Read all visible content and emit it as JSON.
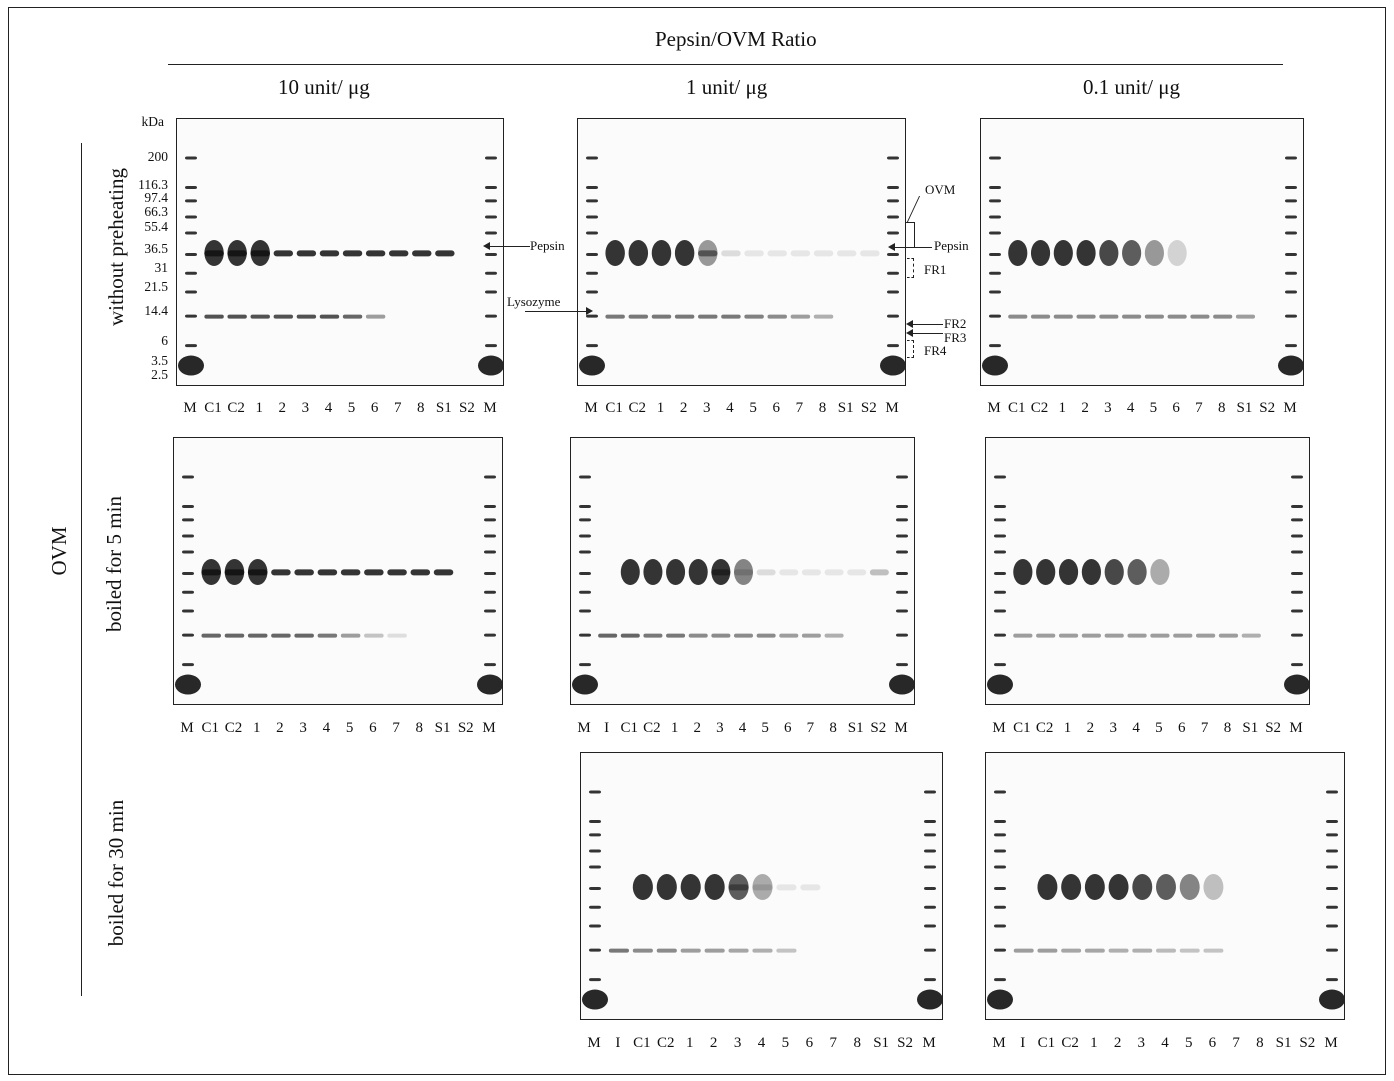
{
  "header": {
    "title": "Pepsin/OVM  Ratio",
    "ratios": [
      "10 unit/ μg",
      "1 unit/ μg",
      "0.1 unit/ μg"
    ]
  },
  "group_label": "OVM",
  "row_labels": [
    "without preheating",
    "boiled for 5 min",
    "boiled for 30 min"
  ],
  "mw_markers": {
    "unit": "kDa",
    "values": [
      "200",
      "116.3",
      "97.4",
      "66.3",
      "55.4",
      "36.5",
      "31",
      "21.5",
      "14.4",
      "6",
      "3.5",
      "2.5"
    ]
  },
  "annotations": {
    "pepsin": "Pepsin",
    "lysozyme": "Lysozyme",
    "ovm": "OVM",
    "fr1": "FR1",
    "fr2": "FR2",
    "fr3": "FR3",
    "fr4": "FR4"
  },
  "lane_sets": {
    "standard": [
      "M",
      "C1",
      "C2",
      "1",
      "2",
      "3",
      "4",
      "5",
      "6",
      "7",
      "8",
      "S1",
      "S2",
      "M"
    ],
    "with_inhibitor": [
      "M",
      "I",
      "C1",
      "C2",
      "1",
      "2",
      "3",
      "4",
      "5",
      "6",
      "7",
      "8",
      "S1",
      "S2",
      "M"
    ]
  },
  "gels": [
    {
      "id": "r1c1",
      "row": 0,
      "col": 0,
      "lanes": "standard",
      "pepsin": [
        1,
        1,
        1,
        1,
        1,
        1,
        1,
        1,
        1,
        1,
        1
      ],
      "ovm": [
        1,
        1,
        1
      ],
      "lyso": [
        0.9,
        0.9,
        0.9,
        0.9,
        0.9,
        0.9,
        0.8,
        0.5,
        0,
        0,
        0,
        0,
        0
      ]
    },
    {
      "id": "r1c2",
      "row": 0,
      "col": 1,
      "lanes": "standard",
      "pepsin": [
        0,
        0,
        0,
        0,
        0.6,
        0.15,
        0.1,
        0.1,
        0.1,
        0.1,
        0.1,
        0.1
      ],
      "ovm": [
        1,
        1,
        1,
        1,
        0.5
      ],
      "lyso": [
        0.7,
        0.7,
        0.7,
        0.7,
        0.7,
        0.7,
        0.65,
        0.6,
        0.5,
        0.4,
        0,
        0,
        0
      ]
    },
    {
      "id": "r1c3",
      "row": 0,
      "col": 2,
      "lanes": "standard",
      "pepsin": [],
      "ovm": [
        1,
        1,
        1,
        1,
        0.9,
        0.8,
        0.5,
        0.2
      ],
      "lyso": [
        0.6,
        0.6,
        0.6,
        0.6,
        0.6,
        0.6,
        0.6,
        0.6,
        0.6,
        0.6,
        0.5,
        0,
        0
      ]
    },
    {
      "id": "r2c1",
      "row": 1,
      "col": 0,
      "lanes": "standard",
      "pepsin": [
        1,
        1,
        1,
        1,
        1,
        1,
        1,
        1,
        1,
        1,
        1
      ],
      "ovm": [
        1,
        1,
        1
      ],
      "lyso": [
        0.8,
        0.8,
        0.8,
        0.8,
        0.8,
        0.7,
        0.5,
        0.3,
        0.15,
        0,
        0,
        0,
        0
      ]
    },
    {
      "id": "r2c2",
      "row": 1,
      "col": 1,
      "lanes": "with_inhibitor",
      "pepsin": [
        0,
        0,
        0,
        0,
        0,
        0.7,
        0.2,
        0.15,
        0.1,
        0.1,
        0.1,
        0.1,
        0.3
      ],
      "ovm": [
        0,
        1,
        1,
        1,
        1,
        1,
        0.6
      ],
      "lyso": [
        0.8,
        0.8,
        0.7,
        0.7,
        0.6,
        0.6,
        0.6,
        0.6,
        0.5,
        0.5,
        0.4,
        0,
        0
      ]
    },
    {
      "id": "r2c3",
      "row": 1,
      "col": 2,
      "lanes": "standard",
      "pepsin": [],
      "ovm": [
        1,
        1,
        1,
        1,
        0.9,
        0.8,
        0.4
      ],
      "lyso": [
        0.5,
        0.5,
        0.5,
        0.5,
        0.5,
        0.5,
        0.5,
        0.5,
        0.5,
        0.5,
        0.4,
        0,
        0
      ]
    },
    {
      "id": "r3c2",
      "row": 2,
      "col": 1,
      "lanes": "with_inhibitor",
      "pepsin": [
        0,
        0,
        0,
        0,
        0,
        0.5,
        0.15,
        0.1,
        0.1,
        0,
        0,
        0,
        0
      ],
      "ovm": [
        0,
        1,
        1,
        1,
        1,
        0.8,
        0.4
      ],
      "lyso": [
        0.7,
        0.6,
        0.6,
        0.5,
        0.5,
        0.45,
        0.4,
        0.3,
        0,
        0,
        0,
        0,
        0
      ]
    },
    {
      "id": "r3c3",
      "row": 2,
      "col": 2,
      "lanes": "with_inhibitor",
      "pepsin": [],
      "ovm": [
        0,
        1,
        1,
        1,
        1,
        0.9,
        0.8,
        0.6,
        0.3
      ],
      "lyso": [
        0.5,
        0.5,
        0.45,
        0.45,
        0.4,
        0.4,
        0.35,
        0.3,
        0.3,
        0,
        0,
        0,
        0
      ]
    }
  ]
}
